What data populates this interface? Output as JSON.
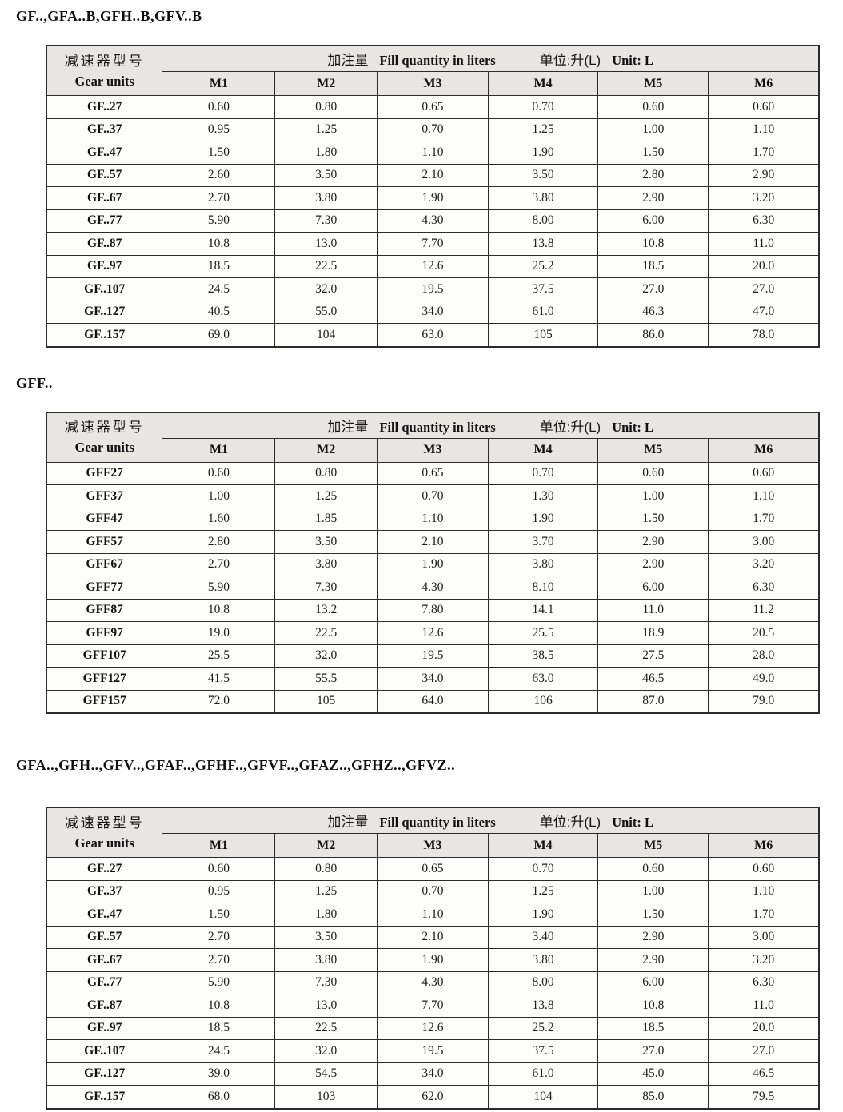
{
  "header_labels": {
    "col1_zh": "减速器型号",
    "col1_en": "Gear units",
    "fill_zh": "加注量",
    "fill_en": "Fill quantity in liters",
    "unit_zh": "单位:升(L)",
    "unit_en": "Unit: L",
    "columns": [
      "M1",
      "M2",
      "M3",
      "M4",
      "M5",
      "M6"
    ]
  },
  "sections": [
    {
      "title": "GF..,GFA..B,GFH..B,GFV..B",
      "rows": [
        {
          "label": "GF..27",
          "values": [
            "0.60",
            "0.80",
            "0.65",
            "0.70",
            "0.60",
            "0.60"
          ]
        },
        {
          "label": "GF..37",
          "values": [
            "0.95",
            "1.25",
            "0.70",
            "1.25",
            "1.00",
            "1.10"
          ]
        },
        {
          "label": "GF..47",
          "values": [
            "1.50",
            "1.80",
            "1.10",
            "1.90",
            "1.50",
            "1.70"
          ]
        },
        {
          "label": "GF..57",
          "values": [
            "2.60",
            "3.50",
            "2.10",
            "3.50",
            "2.80",
            "2.90"
          ]
        },
        {
          "label": "GF..67",
          "values": [
            "2.70",
            "3.80",
            "1.90",
            "3.80",
            "2.90",
            "3.20"
          ]
        },
        {
          "label": "GF..77",
          "values": [
            "5.90",
            "7.30",
            "4.30",
            "8.00",
            "6.00",
            "6.30"
          ]
        },
        {
          "label": "GF..87",
          "values": [
            "10.8",
            "13.0",
            "7.70",
            "13.8",
            "10.8",
            "11.0"
          ]
        },
        {
          "label": "GF..97",
          "values": [
            "18.5",
            "22.5",
            "12.6",
            "25.2",
            "18.5",
            "20.0"
          ]
        },
        {
          "label": "GF..107",
          "values": [
            "24.5",
            "32.0",
            "19.5",
            "37.5",
            "27.0",
            "27.0"
          ]
        },
        {
          "label": "GF..127",
          "values": [
            "40.5",
            "55.0",
            "34.0",
            "61.0",
            "46.3",
            "47.0"
          ]
        },
        {
          "label": "GF..157",
          "values": [
            "69.0",
            "104",
            "63.0",
            "105",
            "86.0",
            "78.0"
          ]
        }
      ]
    },
    {
      "title": "GFF..",
      "rows": [
        {
          "label": "GFF27",
          "values": [
            "0.60",
            "0.80",
            "0.65",
            "0.70",
            "0.60",
            "0.60"
          ]
        },
        {
          "label": "GFF37",
          "values": [
            "1.00",
            "1.25",
            "0.70",
            "1.30",
            "1.00",
            "1.10"
          ]
        },
        {
          "label": "GFF47",
          "values": [
            "1.60",
            "1.85",
            "1.10",
            "1.90",
            "1.50",
            "1.70"
          ]
        },
        {
          "label": "GFF57",
          "values": [
            "2.80",
            "3.50",
            "2.10",
            "3.70",
            "2.90",
            "3.00"
          ]
        },
        {
          "label": "GFF67",
          "values": [
            "2.70",
            "3.80",
            "1.90",
            "3.80",
            "2.90",
            "3.20"
          ]
        },
        {
          "label": "GFF77",
          "values": [
            "5.90",
            "7.30",
            "4.30",
            "8.10",
            "6.00",
            "6.30"
          ]
        },
        {
          "label": "GFF87",
          "values": [
            "10.8",
            "13.2",
            "7.80",
            "14.1",
            "11.0",
            "11.2"
          ]
        },
        {
          "label": "GFF97",
          "values": [
            "19.0",
            "22.5",
            "12.6",
            "25.5",
            "18.9",
            "20.5"
          ]
        },
        {
          "label": "GFF107",
          "values": [
            "25.5",
            "32.0",
            "19.5",
            "38.5",
            "27.5",
            "28.0"
          ]
        },
        {
          "label": "GFF127",
          "values": [
            "41.5",
            "55.5",
            "34.0",
            "63.0",
            "46.5",
            "49.0"
          ]
        },
        {
          "label": "GFF157",
          "values": [
            "72.0",
            "105",
            "64.0",
            "106",
            "87.0",
            "79.0"
          ]
        }
      ]
    },
    {
      "title": "GFA..,GFH..,GFV..,GFAF..,GFHF..,GFVF..,GFAZ..,GFHZ..,GFVZ..",
      "rows": [
        {
          "label": "GF..27",
          "values": [
            "0.60",
            "0.80",
            "0.65",
            "0.70",
            "0.60",
            "0.60"
          ]
        },
        {
          "label": "GF..37",
          "values": [
            "0.95",
            "1.25",
            "0.70",
            "1.25",
            "1.00",
            "1.10"
          ]
        },
        {
          "label": "GF..47",
          "values": [
            "1.50",
            "1.80",
            "1.10",
            "1.90",
            "1.50",
            "1.70"
          ]
        },
        {
          "label": "GF..57",
          "values": [
            "2.70",
            "3.50",
            "2.10",
            "3.40",
            "2.90",
            "3.00"
          ]
        },
        {
          "label": "GF..67",
          "values": [
            "2.70",
            "3.80",
            "1.90",
            "3.80",
            "2.90",
            "3.20"
          ]
        },
        {
          "label": "GF..77",
          "values": [
            "5.90",
            "7.30",
            "4.30",
            "8.00",
            "6.00",
            "6.30"
          ]
        },
        {
          "label": "GF..87",
          "values": [
            "10.8",
            "13.0",
            "7.70",
            "13.8",
            "10.8",
            "11.0"
          ]
        },
        {
          "label": "GF..97",
          "values": [
            "18.5",
            "22.5",
            "12.6",
            "25.2",
            "18.5",
            "20.0"
          ]
        },
        {
          "label": "GF..107",
          "values": [
            "24.5",
            "32.0",
            "19.5",
            "37.5",
            "27.0",
            "27.0"
          ]
        },
        {
          "label": "GF..127",
          "values": [
            "39.0",
            "54.5",
            "34.0",
            "61.0",
            "45.0",
            "46.5"
          ]
        },
        {
          "label": "GF..157",
          "values": [
            "68.0",
            "103",
            "62.0",
            "104",
            "85.0",
            "79.5"
          ]
        }
      ]
    }
  ]
}
